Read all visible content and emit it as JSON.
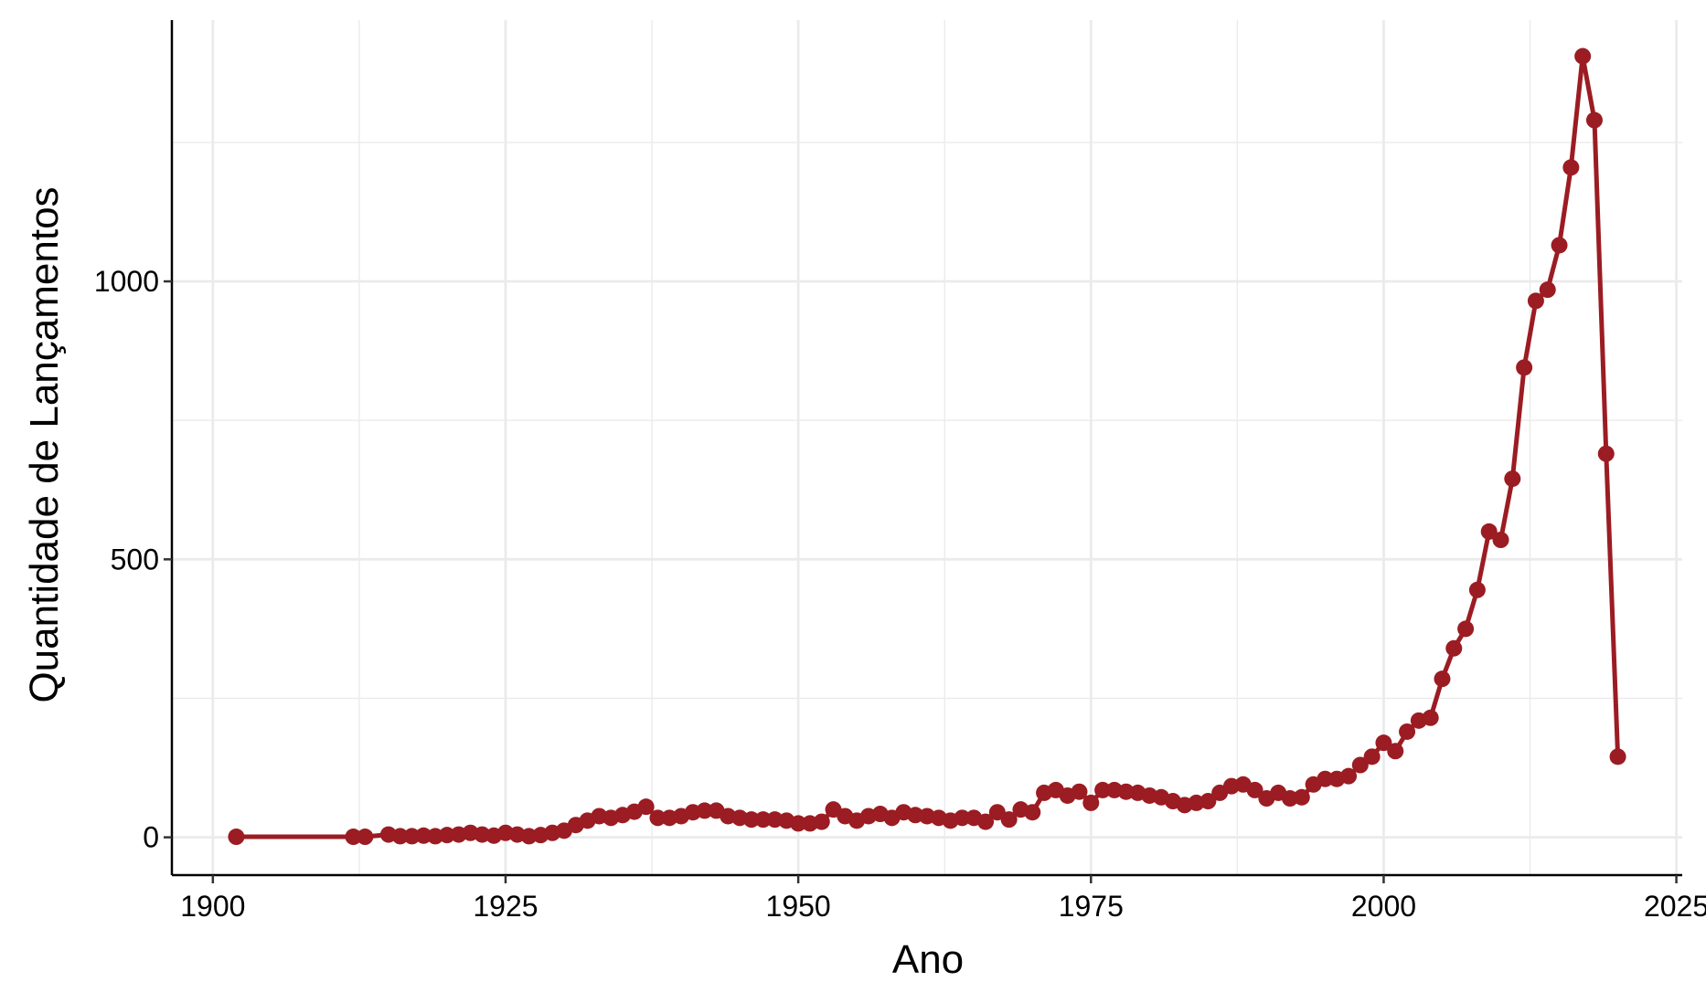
{
  "chart_data": {
    "type": "line",
    "xlabel": "Ano",
    "ylabel": "Quantidade de Lançamentos",
    "xlim": [
      1896.5,
      2025.5
    ],
    "ylim": [
      -68,
      1470
    ],
    "x_ticks": [
      1900,
      1925,
      1950,
      1975,
      2000,
      2025
    ],
    "x_tick_labels": [
      "1900",
      "1925",
      "1950",
      "1975",
      "2000",
      "2025"
    ],
    "y_ticks": [
      0,
      500,
      1000
    ],
    "y_tick_labels": [
      "0",
      "500",
      "1000"
    ],
    "y_minor_ticks": [
      250,
      750,
      1250
    ],
    "x_minor_ticks": [
      1912.5,
      1937.5,
      1962.5,
      1987.5,
      2012.5
    ],
    "grid": true,
    "legend": "none",
    "colors": {
      "series": "#9b1c22",
      "grid": "#ebebeb",
      "axis": "#000000",
      "background": "#ffffff"
    },
    "series": [
      {
        "x": [
          1902,
          1912,
          1913,
          1915,
          1916,
          1917,
          1918,
          1919,
          1920,
          1921,
          1922,
          1923,
          1924,
          1925,
          1926,
          1927,
          1928,
          1929,
          1930,
          1931,
          1932,
          1933,
          1934,
          1935,
          1936,
          1937,
          1938,
          1939,
          1940,
          1941,
          1942,
          1943,
          1944,
          1945,
          1946,
          1947,
          1948,
          1949,
          1950,
          1951,
          1952,
          1953,
          1954,
          1955,
          1956,
          1957,
          1958,
          1959,
          1960,
          1961,
          1962,
          1963,
          1964,
          1965,
          1966,
          1967,
          1968,
          1969,
          1970,
          1971,
          1972,
          1973,
          1974,
          1975,
          1976,
          1977,
          1978,
          1979,
          1980,
          1981,
          1982,
          1983,
          1984,
          1985,
          1986,
          1987,
          1988,
          1989,
          1990,
          1991,
          1992,
          1993,
          1994,
          1995,
          1996,
          1997,
          1998,
          1999,
          2000,
          2001,
          2002,
          2003,
          2004,
          2005,
          2006,
          2007,
          2008,
          2009,
          2010,
          2011,
          2012,
          2013,
          2014,
          2015,
          2016,
          2017,
          2018,
          2019,
          2020
        ],
        "y": [
          1,
          1,
          1,
          5,
          2,
          2,
          3,
          2,
          4,
          5,
          8,
          5,
          3,
          8,
          5,
          2,
          4,
          8,
          12,
          22,
          30,
          38,
          35,
          40,
          46,
          55,
          35,
          35,
          38,
          45,
          48,
          48,
          38,
          35,
          32,
          32,
          32,
          30,
          25,
          25,
          28,
          50,
          38,
          30,
          38,
          42,
          35,
          45,
          40,
          38,
          35,
          30,
          35,
          35,
          28,
          45,
          32,
          50,
          45,
          80,
          85,
          75,
          82,
          62,
          85,
          85,
          82,
          80,
          75,
          72,
          65,
          58,
          62,
          65,
          80,
          92,
          95,
          85,
          70,
          80,
          70,
          72,
          95,
          105,
          105,
          110,
          130,
          145,
          170,
          155,
          190,
          210,
          215,
          285,
          340,
          375,
          445,
          550,
          535,
          645,
          845,
          965,
          985,
          1065,
          1205,
          1405,
          1290,
          690,
          145
        ]
      }
    ]
  }
}
